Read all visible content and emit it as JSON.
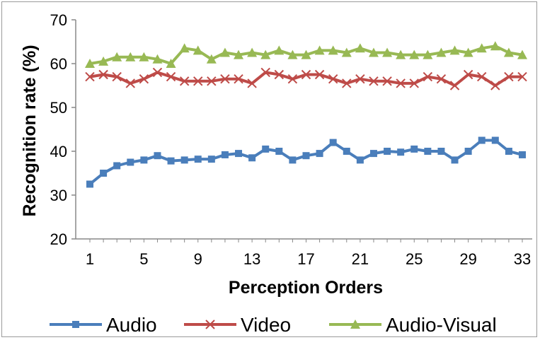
{
  "chart_data": {
    "type": "line",
    "xlabel": "Perception Orders",
    "ylabel": "Recognition rate (%)",
    "ylim": [
      20,
      70
    ],
    "xlim": [
      1,
      33
    ],
    "yticks": [
      20,
      30,
      40,
      50,
      60,
      70
    ],
    "xticks": [
      1,
      5,
      9,
      13,
      17,
      21,
      25,
      29,
      33
    ],
    "grid": false,
    "legend": "bottom",
    "x": [
      1,
      2,
      3,
      4,
      5,
      6,
      7,
      8,
      9,
      10,
      11,
      12,
      13,
      14,
      15,
      16,
      17,
      18,
      19,
      20,
      21,
      22,
      23,
      24,
      25,
      26,
      27,
      28,
      29,
      30,
      31,
      32,
      33
    ],
    "series": [
      {
        "name": "Audio",
        "color": "#4a7ebb",
        "marker": "square",
        "values": [
          32.5,
          35,
          36.7,
          37.5,
          38,
          39,
          37.8,
          38,
          38.2,
          38.2,
          39.2,
          39.5,
          38.5,
          40.5,
          40,
          38,
          39,
          39.5,
          42,
          40,
          38,
          39.5,
          40,
          39.8,
          40.5,
          40,
          40,
          38,
          40,
          42.5,
          42.5,
          40,
          39.2
        ]
      },
      {
        "name": "Video",
        "color": "#be4b48",
        "marker": "x",
        "values": [
          57,
          57.5,
          57,
          55.5,
          56.5,
          58,
          57,
          56,
          56,
          56,
          56.5,
          56.5,
          55.5,
          58,
          57.5,
          56.5,
          57.5,
          57.5,
          56.5,
          55.5,
          56.5,
          56,
          56,
          55.5,
          55.5,
          57,
          56.5,
          55,
          57.5,
          57,
          55,
          57,
          57
        ]
      },
      {
        "name": "Audio-Visual",
        "color": "#98b954",
        "marker": "triangle",
        "values": [
          60,
          60.5,
          61.5,
          61.5,
          61.5,
          61,
          60,
          63.5,
          63,
          61,
          62.5,
          62,
          62.5,
          62,
          63,
          62,
          62,
          63,
          63,
          62.5,
          63.5,
          62.5,
          62.5,
          62,
          62,
          62,
          62.5,
          63,
          62.5,
          63.5,
          64,
          62.5,
          62
        ]
      }
    ]
  }
}
